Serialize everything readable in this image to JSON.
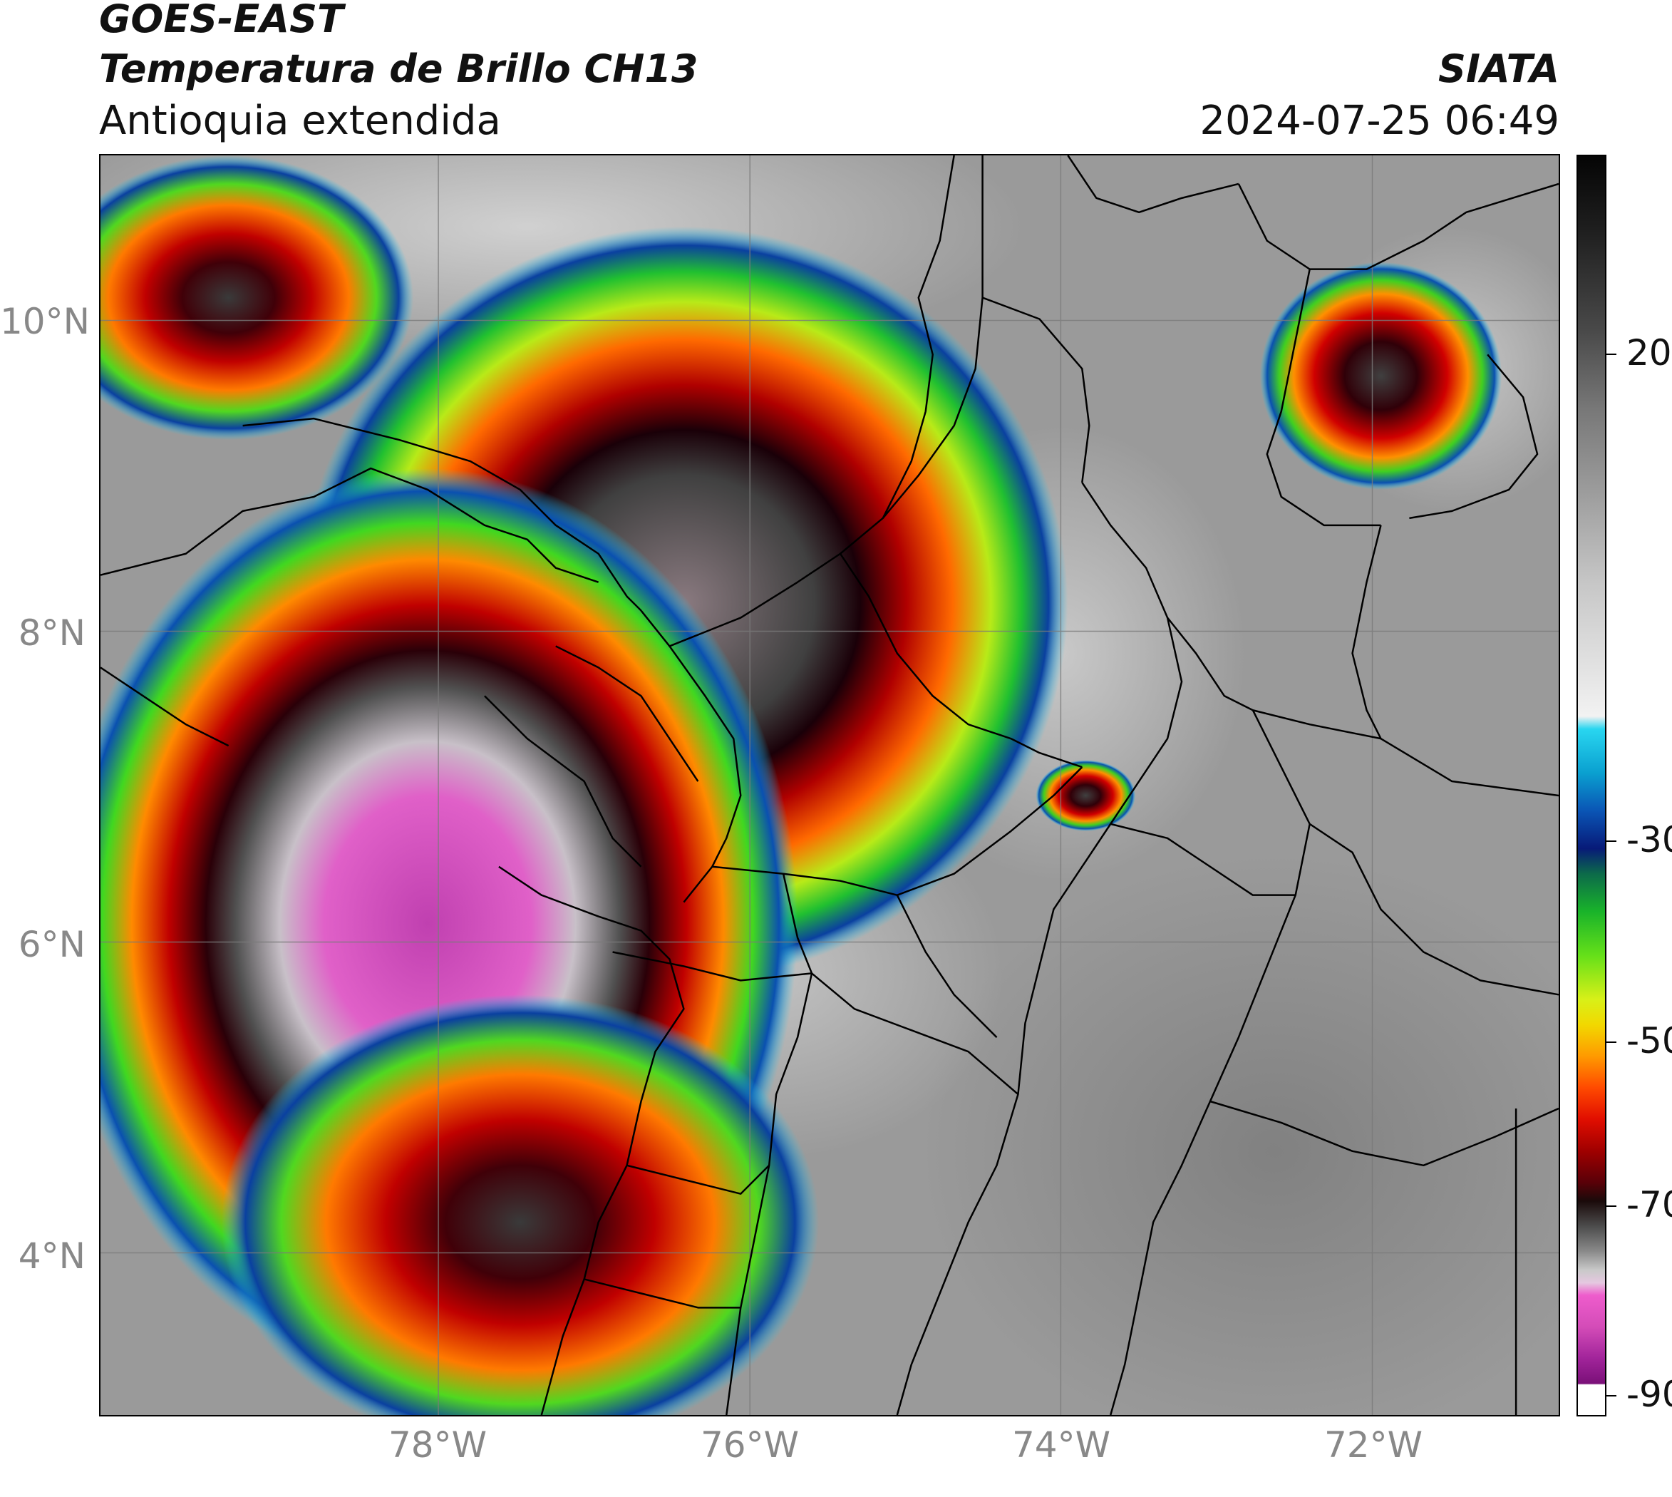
{
  "header": {
    "satellite": "GOES-EAST",
    "product": "Temperatura de Brillo CH13",
    "region": "Antioquia extendida",
    "agency": "SIATA",
    "datetime": "2024-07-25 06:49"
  },
  "map": {
    "lat_labels": [
      "10°N",
      "8°N",
      "6°N",
      "4°N"
    ],
    "lon_labels": [
      "78°W",
      "76°W",
      "74°W",
      "72°W"
    ],
    "base_color": "#9a9a9a"
  },
  "colorbar": {
    "tick_labels": [
      "20",
      "-30",
      "-50",
      "-70",
      "-90"
    ]
  }
}
